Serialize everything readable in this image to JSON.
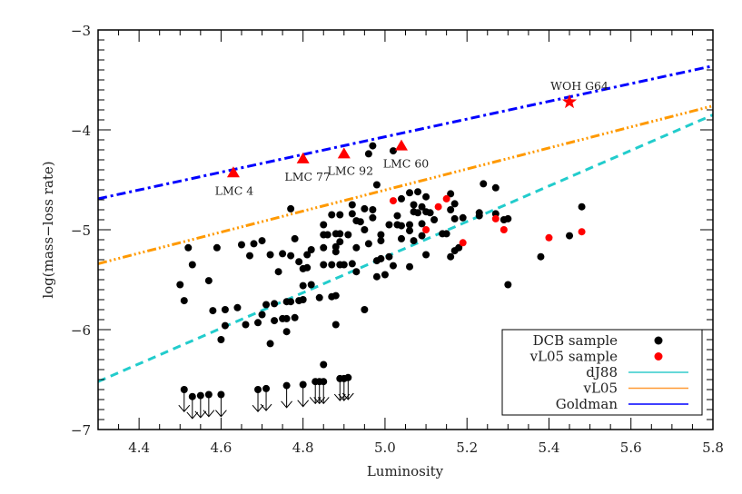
{
  "chart_data": {
    "type": "scatter",
    "title": "",
    "xlabel": "Luminosity",
    "ylabel": "log(mass−loss rate)",
    "xlim": [
      4.3,
      5.8
    ],
    "ylim": [
      -7,
      -3
    ],
    "x_ticks": [
      "4.4",
      "4.6",
      "4.8",
      "5.0",
      "5.2",
      "5.4",
      "5.6",
      "5.8"
    ],
    "x_tick_values": [
      4.4,
      4.6,
      4.8,
      5.0,
      5.2,
      5.4,
      5.6,
      5.8
    ],
    "y_ticks": [
      "−7",
      "−6",
      "−5",
      "−4",
      "−3"
    ],
    "y_tick_values": [
      -7,
      -6,
      -5,
      -4,
      -3
    ],
    "grid": false,
    "legend_placement": "bottom-right",
    "legend": [
      {
        "label": "DCB sample",
        "kind": "marker",
        "color": "#000000"
      },
      {
        "label": "vL05 sample",
        "kind": "marker",
        "color": "#ff0000"
      },
      {
        "label": "dJ88",
        "kind": "line",
        "color": "#33cccc"
      },
      {
        "label": "vL05",
        "kind": "line",
        "color": "#ff9933"
      },
      {
        "label": "Goldman",
        "kind": "line",
        "color": "#0000ff"
      }
    ],
    "lines": [
      {
        "name": "dJ88",
        "color": "#22cccc",
        "style": "dashed",
        "points": [
          [
            4.3,
            -6.52
          ],
          [
            5.8,
            -3.85
          ]
        ]
      },
      {
        "name": "vL05",
        "color": "#ff9900",
        "style": "dash-dot-dot-dot",
        "points": [
          [
            4.3,
            -5.34
          ],
          [
            5.8,
            -3.76
          ]
        ]
      },
      {
        "name": "Goldman",
        "color": "#0000ff",
        "style": "dash-dot",
        "points": [
          [
            4.3,
            -4.69
          ],
          [
            5.8,
            -3.36
          ]
        ]
      }
    ],
    "series": [
      {
        "name": "DCB sample",
        "color": "#000000",
        "points": [
          [
            4.5,
            -5.55
          ],
          [
            4.51,
            -5.71
          ],
          [
            4.52,
            -5.18
          ],
          [
            4.53,
            -5.35
          ],
          [
            4.57,
            -5.51
          ],
          [
            4.58,
            -5.81
          ],
          [
            4.59,
            -5.18
          ],
          [
            4.6,
            -6.1
          ],
          [
            4.61,
            -5.8
          ],
          [
            4.61,
            -5.96
          ],
          [
            4.64,
            -5.78
          ],
          [
            4.65,
            -5.15
          ],
          [
            4.66,
            -5.95
          ],
          [
            4.67,
            -5.26
          ],
          [
            4.68,
            -5.14
          ],
          [
            4.69,
            -5.93
          ],
          [
            4.7,
            -5.11
          ],
          [
            4.7,
            -5.85
          ],
          [
            4.71,
            -5.75
          ],
          [
            4.72,
            -5.25
          ],
          [
            4.72,
            -6.14
          ],
          [
            4.73,
            -5.74
          ],
          [
            4.73,
            -5.91
          ],
          [
            4.74,
            -5.42
          ],
          [
            4.75,
            -5.24
          ],
          [
            4.75,
            -5.89
          ],
          [
            4.76,
            -5.72
          ],
          [
            4.76,
            -5.89
          ],
          [
            4.76,
            -6.02
          ],
          [
            4.77,
            -4.79
          ],
          [
            4.77,
            -5.26
          ],
          [
            4.77,
            -5.72
          ],
          [
            4.78,
            -5.09
          ],
          [
            4.78,
            -5.88
          ],
          [
            4.79,
            -5.32
          ],
          [
            4.79,
            -5.71
          ],
          [
            4.8,
            -5.39
          ],
          [
            4.8,
            -5.56
          ],
          [
            4.8,
            -5.7
          ],
          [
            4.81,
            -5.38
          ],
          [
            4.81,
            -5.25
          ],
          [
            4.82,
            -5.2
          ],
          [
            4.82,
            -5.55
          ],
          [
            4.84,
            -5.68
          ],
          [
            4.85,
            -4.95
          ],
          [
            4.85,
            -5.05
          ],
          [
            4.85,
            -5.18
          ],
          [
            4.85,
            -5.35
          ],
          [
            4.85,
            -6.35
          ],
          [
            4.86,
            -5.05
          ],
          [
            4.87,
            -4.85
          ],
          [
            4.87,
            -5.35
          ],
          [
            4.87,
            -5.67
          ],
          [
            4.88,
            -5.04
          ],
          [
            4.88,
            -5.17
          ],
          [
            4.88,
            -5.22
          ],
          [
            4.88,
            -5.95
          ],
          [
            4.88,
            -5.66
          ],
          [
            4.89,
            -4.85
          ],
          [
            4.89,
            -5.04
          ],
          [
            4.89,
            -5.12
          ],
          [
            4.89,
            -5.35
          ],
          [
            4.9,
            -5.35
          ],
          [
            4.91,
            -5.05
          ],
          [
            4.92,
            -4.75
          ],
          [
            4.92,
            -4.84
          ],
          [
            4.92,
            -5.34
          ],
          [
            4.93,
            -4.91
          ],
          [
            4.93,
            -5.18
          ],
          [
            4.93,
            -5.42
          ],
          [
            4.94,
            -4.92
          ],
          [
            4.95,
            -4.79
          ],
          [
            4.95,
            -5.0
          ],
          [
            4.95,
            -5.8
          ],
          [
            4.96,
            -4.24
          ],
          [
            4.96,
            -5.14
          ],
          [
            4.97,
            -4.16
          ],
          [
            4.97,
            -4.8
          ],
          [
            4.97,
            -4.88
          ],
          [
            4.98,
            -4.55
          ],
          [
            4.98,
            -5.31
          ],
          [
            4.98,
            -5.47
          ],
          [
            4.99,
            -5.05
          ],
          [
            4.99,
            -5.11
          ],
          [
            4.99,
            -5.29
          ],
          [
            5.0,
            -5.45
          ],
          [
            5.01,
            -4.95
          ],
          [
            5.01,
            -5.27
          ],
          [
            5.02,
            -4.21
          ],
          [
            5.02,
            -5.36
          ],
          [
            5.03,
            -4.86
          ],
          [
            5.03,
            -4.95
          ],
          [
            5.04,
            -4.69
          ],
          [
            5.04,
            -4.96
          ],
          [
            5.04,
            -5.09
          ],
          [
            5.06,
            -4.63
          ],
          [
            5.06,
            -4.95
          ],
          [
            5.06,
            -5.01
          ],
          [
            5.06,
            -5.37
          ],
          [
            5.07,
            -4.75
          ],
          [
            5.07,
            -4.82
          ],
          [
            5.07,
            -5.11
          ],
          [
            5.08,
            -4.62
          ],
          [
            5.08,
            -4.83
          ],
          [
            5.09,
            -4.77
          ],
          [
            5.09,
            -4.94
          ],
          [
            5.09,
            -5.06
          ],
          [
            5.1,
            -4.67
          ],
          [
            5.1,
            -4.82
          ],
          [
            5.1,
            -5.25
          ],
          [
            5.11,
            -4.83
          ],
          [
            5.12,
            -4.9
          ],
          [
            5.14,
            -5.04
          ],
          [
            5.15,
            -5.04
          ],
          [
            5.16,
            -4.64
          ],
          [
            5.16,
            -4.8
          ],
          [
            5.16,
            -5.27
          ],
          [
            5.17,
            -4.74
          ],
          [
            5.17,
            -4.89
          ],
          [
            5.17,
            -5.21
          ],
          [
            5.18,
            -5.18
          ],
          [
            5.19,
            -4.88
          ],
          [
            5.23,
            -4.83
          ],
          [
            5.23,
            -4.86
          ],
          [
            5.24,
            -4.54
          ],
          [
            5.27,
            -4.58
          ],
          [
            5.27,
            -4.84
          ],
          [
            5.29,
            -4.9
          ],
          [
            5.3,
            -4.89
          ],
          [
            5.3,
            -5.55
          ],
          [
            5.38,
            -5.27
          ],
          [
            5.45,
            -5.06
          ],
          [
            5.48,
            -4.77
          ]
        ]
      },
      {
        "name": "vL05 sample",
        "color": "#ff0000",
        "points": [
          [
            5.02,
            -4.71
          ],
          [
            5.15,
            -4.69
          ],
          [
            5.13,
            -4.77
          ],
          [
            5.1,
            -5.0
          ],
          [
            5.19,
            -5.13
          ],
          [
            5.27,
            -4.89
          ],
          [
            5.29,
            -5.0
          ],
          [
            5.4,
            -5.08
          ],
          [
            5.48,
            -5.02
          ]
        ]
      }
    ],
    "upper_limits": {
      "color": "#000000",
      "points": [
        [
          4.51,
          -6.6
        ],
        [
          4.53,
          -6.67
        ],
        [
          4.55,
          -6.66
        ],
        [
          4.57,
          -6.65
        ],
        [
          4.6,
          -6.65
        ],
        [
          4.69,
          -6.6
        ],
        [
          4.71,
          -6.59
        ],
        [
          4.76,
          -6.56
        ],
        [
          4.8,
          -6.55
        ],
        [
          4.83,
          -6.52
        ],
        [
          4.84,
          -6.52
        ],
        [
          4.85,
          -6.52
        ],
        [
          4.89,
          -6.49
        ],
        [
          4.9,
          -6.49
        ],
        [
          4.91,
          -6.48
        ]
      ]
    },
    "highlighted": [
      {
        "label": "LMC 4",
        "marker": "triangle",
        "color": "#ff0000",
        "point": [
          4.63,
          -4.43
        ]
      },
      {
        "label": "LMC 77",
        "marker": "triangle",
        "color": "#ff0000",
        "point": [
          4.8,
          -4.29
        ]
      },
      {
        "label": "LMC 92",
        "marker": "triangle",
        "color": "#ff0000",
        "point": [
          4.9,
          -4.24
        ]
      },
      {
        "label": "LMC 60",
        "marker": "triangle",
        "color": "#ff0000",
        "point": [
          5.04,
          -4.16
        ]
      },
      {
        "label": "WOH G64",
        "marker": "star",
        "color": "#ff0000",
        "point": [
          5.45,
          -3.72
        ]
      }
    ]
  }
}
